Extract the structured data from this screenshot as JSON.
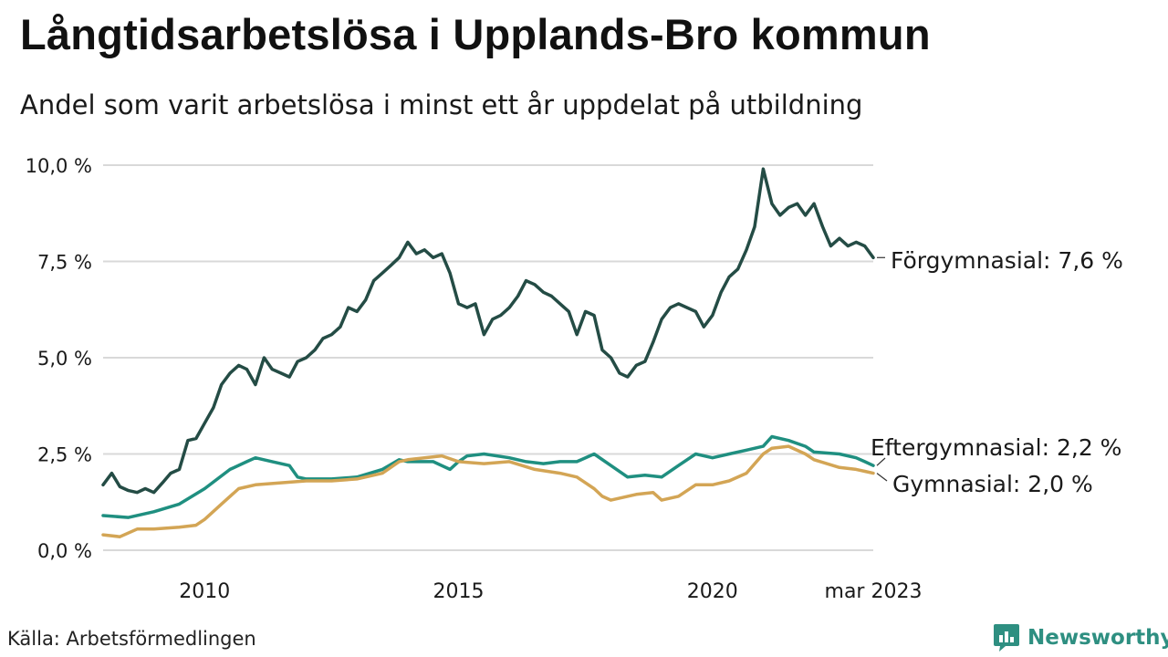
{
  "title": "Långtidsarbetslösa i Upplands-Bro kommun",
  "subtitle": "Andel som varit arbetslösa i minst ett år uppdelat på utbildning",
  "source": "Källa: Arbetsförmedlingen",
  "brand": "Newsworthy",
  "colors": {
    "forgymnasial": "#244c45",
    "eftergymnasial": "#1f8f80",
    "gymnasial": "#d3a555",
    "grid": "#d9d9d9",
    "brand": "#2e8f81"
  },
  "chart_data": {
    "type": "line",
    "y_tick_labels": [
      "0,0 %",
      "2,5 %",
      "5,0 %",
      "7,5 %",
      "10,0 %"
    ],
    "y_ticks": [
      0,
      2.5,
      5,
      7.5,
      10
    ],
    "ylim": [
      0,
      10
    ],
    "x_tick_labels": [
      "2010",
      "2015",
      "2020",
      "mar 2023"
    ],
    "x_ticks": [
      2010,
      2015,
      2020,
      2023.167
    ],
    "xlim": [
      2008.0,
      2023.167
    ],
    "grid": true,
    "legend": "end-of-line labels",
    "series": [
      {
        "name": "Förgymnasial",
        "end_label": "Förgymnasial: 7,6 %",
        "color_key": "forgymnasial",
        "points": [
          [
            2008.0,
            1.7
          ],
          [
            2008.17,
            2.0
          ],
          [
            2008.33,
            1.65
          ],
          [
            2008.5,
            1.55
          ],
          [
            2008.67,
            1.5
          ],
          [
            2008.83,
            1.6
          ],
          [
            2009.0,
            1.5
          ],
          [
            2009.17,
            1.75
          ],
          [
            2009.33,
            2.0
          ],
          [
            2009.5,
            2.1
          ],
          [
            2009.67,
            2.85
          ],
          [
            2009.83,
            2.9
          ],
          [
            2010.0,
            3.3
          ],
          [
            2010.17,
            3.7
          ],
          [
            2010.33,
            4.3
          ],
          [
            2010.5,
            4.6
          ],
          [
            2010.67,
            4.8
          ],
          [
            2010.83,
            4.7
          ],
          [
            2011.0,
            4.3
          ],
          [
            2011.17,
            5.0
          ],
          [
            2011.33,
            4.7
          ],
          [
            2011.5,
            4.6
          ],
          [
            2011.67,
            4.5
          ],
          [
            2011.83,
            4.9
          ],
          [
            2012.0,
            5.0
          ],
          [
            2012.17,
            5.2
          ],
          [
            2012.33,
            5.5
          ],
          [
            2012.5,
            5.6
          ],
          [
            2012.67,
            5.8
          ],
          [
            2012.83,
            6.3
          ],
          [
            2013.0,
            6.2
          ],
          [
            2013.17,
            6.5
          ],
          [
            2013.33,
            7.0
          ],
          [
            2013.5,
            7.2
          ],
          [
            2013.67,
            7.4
          ],
          [
            2013.83,
            7.6
          ],
          [
            2014.0,
            8.0
          ],
          [
            2014.17,
            7.7
          ],
          [
            2014.33,
            7.8
          ],
          [
            2014.5,
            7.6
          ],
          [
            2014.67,
            7.7
          ],
          [
            2014.83,
            7.2
          ],
          [
            2015.0,
            6.4
          ],
          [
            2015.17,
            6.3
          ],
          [
            2015.33,
            6.4
          ],
          [
            2015.5,
            5.6
          ],
          [
            2015.67,
            6.0
          ],
          [
            2015.83,
            6.1
          ],
          [
            2016.0,
            6.3
          ],
          [
            2016.17,
            6.6
          ],
          [
            2016.33,
            7.0
          ],
          [
            2016.5,
            6.9
          ],
          [
            2016.67,
            6.7
          ],
          [
            2016.83,
            6.6
          ],
          [
            2017.0,
            6.4
          ],
          [
            2017.17,
            6.2
          ],
          [
            2017.33,
            5.6
          ],
          [
            2017.5,
            6.2
          ],
          [
            2017.67,
            6.1
          ],
          [
            2017.83,
            5.2
          ],
          [
            2018.0,
            5.0
          ],
          [
            2018.17,
            4.6
          ],
          [
            2018.33,
            4.5
          ],
          [
            2018.5,
            4.8
          ],
          [
            2018.67,
            4.9
          ],
          [
            2018.83,
            5.4
          ],
          [
            2019.0,
            6.0
          ],
          [
            2019.17,
            6.3
          ],
          [
            2019.33,
            6.4
          ],
          [
            2019.5,
            6.3
          ],
          [
            2019.67,
            6.2
          ],
          [
            2019.83,
            5.8
          ],
          [
            2020.0,
            6.1
          ],
          [
            2020.17,
            6.7
          ],
          [
            2020.33,
            7.1
          ],
          [
            2020.5,
            7.3
          ],
          [
            2020.67,
            7.8
          ],
          [
            2020.83,
            8.4
          ],
          [
            2021.0,
            9.9
          ],
          [
            2021.17,
            9.0
          ],
          [
            2021.33,
            8.7
          ],
          [
            2021.5,
            8.9
          ],
          [
            2021.67,
            9.0
          ],
          [
            2021.83,
            8.7
          ],
          [
            2022.0,
            9.0
          ],
          [
            2022.17,
            8.4
          ],
          [
            2022.33,
            7.9
          ],
          [
            2022.5,
            8.1
          ],
          [
            2022.67,
            7.9
          ],
          [
            2022.83,
            8.0
          ],
          [
            2023.0,
            7.9
          ],
          [
            2023.167,
            7.6
          ]
        ]
      },
      {
        "name": "Eftergymnasial",
        "end_label": "Eftergymnasial: 2,2 %",
        "color_key": "eftergymnasial",
        "points": [
          [
            2008.0,
            0.9
          ],
          [
            2008.5,
            0.85
          ],
          [
            2009.0,
            1.0
          ],
          [
            2009.5,
            1.2
          ],
          [
            2010.0,
            1.6
          ],
          [
            2010.5,
            2.1
          ],
          [
            2010.83,
            2.3
          ],
          [
            2011.0,
            2.4
          ],
          [
            2011.33,
            2.3
          ],
          [
            2011.67,
            2.2
          ],
          [
            2011.83,
            1.9
          ],
          [
            2012.0,
            1.85
          ],
          [
            2012.5,
            1.85
          ],
          [
            2013.0,
            1.9
          ],
          [
            2013.5,
            2.1
          ],
          [
            2013.83,
            2.35
          ],
          [
            2014.0,
            2.3
          ],
          [
            2014.5,
            2.3
          ],
          [
            2014.83,
            2.1
          ],
          [
            2015.0,
            2.3
          ],
          [
            2015.17,
            2.45
          ],
          [
            2015.5,
            2.5
          ],
          [
            2016.0,
            2.4
          ],
          [
            2016.33,
            2.3
          ],
          [
            2016.67,
            2.25
          ],
          [
            2017.0,
            2.3
          ],
          [
            2017.33,
            2.3
          ],
          [
            2017.67,
            2.5
          ],
          [
            2018.0,
            2.2
          ],
          [
            2018.33,
            1.9
          ],
          [
            2018.67,
            1.95
          ],
          [
            2019.0,
            1.9
          ],
          [
            2019.33,
            2.2
          ],
          [
            2019.67,
            2.5
          ],
          [
            2020.0,
            2.4
          ],
          [
            2020.33,
            2.5
          ],
          [
            2020.67,
            2.6
          ],
          [
            2021.0,
            2.7
          ],
          [
            2021.17,
            2.95
          ],
          [
            2021.5,
            2.85
          ],
          [
            2021.83,
            2.7
          ],
          [
            2022.0,
            2.55
          ],
          [
            2022.5,
            2.5
          ],
          [
            2022.83,
            2.4
          ],
          [
            2023.0,
            2.3
          ],
          [
            2023.167,
            2.2
          ]
        ]
      },
      {
        "name": "Gymnasial",
        "end_label": "Gymnasial: 2,0 %",
        "color_key": "gymnasial",
        "points": [
          [
            2008.0,
            0.4
          ],
          [
            2008.33,
            0.35
          ],
          [
            2008.67,
            0.55
          ],
          [
            2009.0,
            0.55
          ],
          [
            2009.5,
            0.6
          ],
          [
            2009.83,
            0.65
          ],
          [
            2010.0,
            0.8
          ],
          [
            2010.33,
            1.2
          ],
          [
            2010.67,
            1.6
          ],
          [
            2011.0,
            1.7
          ],
          [
            2011.5,
            1.75
          ],
          [
            2012.0,
            1.8
          ],
          [
            2012.5,
            1.8
          ],
          [
            2013.0,
            1.85
          ],
          [
            2013.5,
            2.0
          ],
          [
            2013.83,
            2.3
          ],
          [
            2014.0,
            2.35
          ],
          [
            2014.33,
            2.4
          ],
          [
            2014.67,
            2.45
          ],
          [
            2015.0,
            2.3
          ],
          [
            2015.5,
            2.25
          ],
          [
            2016.0,
            2.3
          ],
          [
            2016.5,
            2.1
          ],
          [
            2017.0,
            2.0
          ],
          [
            2017.33,
            1.9
          ],
          [
            2017.67,
            1.6
          ],
          [
            2017.83,
            1.4
          ],
          [
            2018.0,
            1.3
          ],
          [
            2018.5,
            1.45
          ],
          [
            2018.83,
            1.5
          ],
          [
            2019.0,
            1.3
          ],
          [
            2019.33,
            1.4
          ],
          [
            2019.67,
            1.7
          ],
          [
            2020.0,
            1.7
          ],
          [
            2020.33,
            1.8
          ],
          [
            2020.67,
            2.0
          ],
          [
            2021.0,
            2.5
          ],
          [
            2021.17,
            2.65
          ],
          [
            2021.5,
            2.7
          ],
          [
            2021.83,
            2.5
          ],
          [
            2022.0,
            2.35
          ],
          [
            2022.5,
            2.15
          ],
          [
            2022.83,
            2.1
          ],
          [
            2023.0,
            2.05
          ],
          [
            2023.167,
            2.0
          ]
        ]
      }
    ]
  }
}
